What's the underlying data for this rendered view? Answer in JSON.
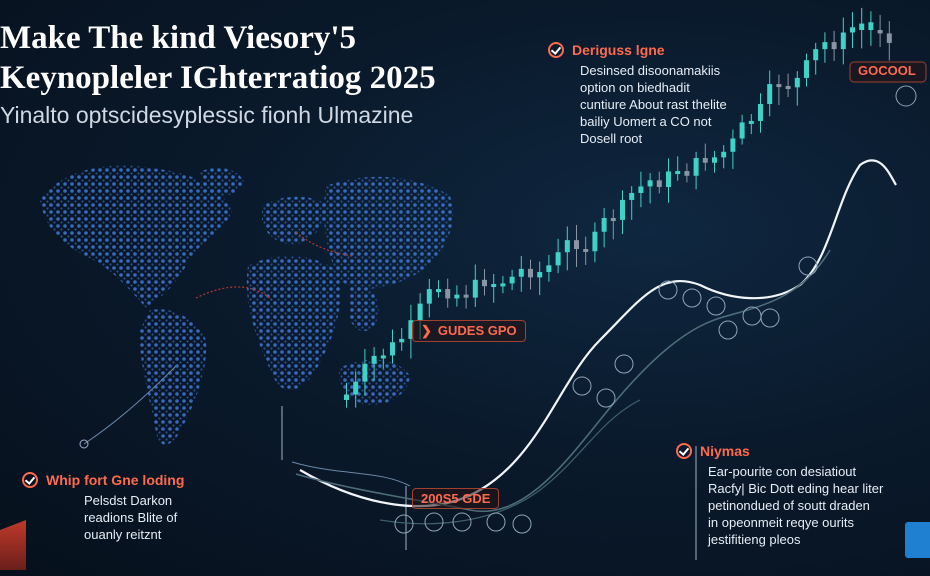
{
  "title_line1": "Make The kind Viesory'5",
  "title_line2": "Keynopleler IGhterratiog 2025",
  "subtitle": "Yinalto optscidesyplessic fionh Ulmazine",
  "callout_top_right": {
    "heading": "Deriguss lgne",
    "lines": [
      "Desinsed disoonamakiis",
      "option on biedhadit",
      "cuntiure About rast thelite",
      "bailiy Uomert a CO not",
      "Dosell root"
    ]
  },
  "callout_bottom_left": {
    "heading": "Whip fort Gne loding",
    "lines": [
      "Pelsdst Darkon",
      "readions Blite of",
      "ouanly reitznt"
    ]
  },
  "callout_bottom_right": {
    "heading": "Niymas",
    "lines": [
      "Ear-pourite con desiatiout",
      "Racfy| Bic Dott eding hear liter",
      "petinondued of soutt draden",
      "in opeonmeit reqye ourits",
      "jestifitieng pleos"
    ]
  },
  "tags": {
    "top_right": "GOCOOL",
    "middle": "GUDES GPO",
    "bottom": "200S5 GDE"
  },
  "colors": {
    "background": "#0a1a2c",
    "accent": "#ff6a4d",
    "candle_up": "#3fd2c7",
    "candle_down": "#8a94a3",
    "map_dots": "#3a6fc4"
  },
  "icons": [
    "check-circle-icon",
    "logo-badge-icon",
    "chat-badge-icon"
  ]
}
